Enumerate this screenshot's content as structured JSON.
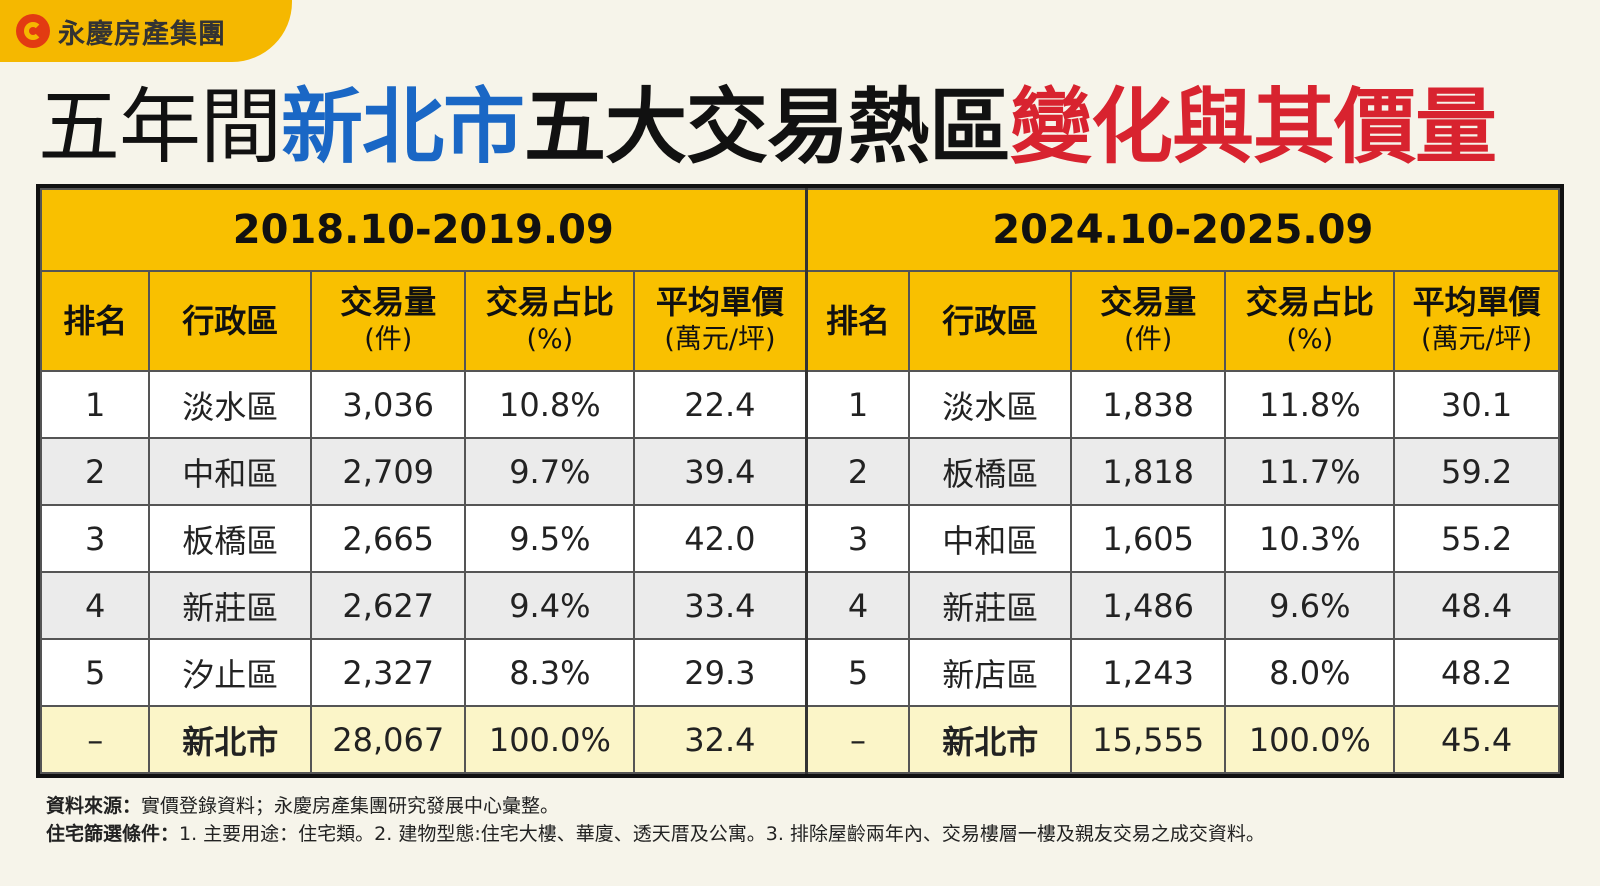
{
  "logo": {
    "text": "永慶房產集團"
  },
  "title": {
    "part1": "五年間",
    "part2": "新北市",
    "part3": "五大交易熱區",
    "part4": "變化與其價量"
  },
  "periods": [
    "2018.10-2019.09",
    "2024.10-2025.09"
  ],
  "columns": [
    {
      "label": "排名",
      "unit": ""
    },
    {
      "label": "行政區",
      "unit": ""
    },
    {
      "label": "交易量",
      "unit": "(件)"
    },
    {
      "label": "交易占比",
      "unit": "(%)"
    },
    {
      "label": "平均單價",
      "unit": "(萬元/坪)"
    }
  ],
  "rows": [
    {
      "left": [
        "1",
        "淡水區",
        "3,036",
        "10.8%",
        "22.4"
      ],
      "right": [
        "1",
        "淡水區",
        "1,838",
        "11.8%",
        "30.1"
      ]
    },
    {
      "left": [
        "2",
        "中和區",
        "2,709",
        "9.7%",
        "39.4"
      ],
      "right": [
        "2",
        "板橋區",
        "1,818",
        "11.7%",
        "59.2"
      ]
    },
    {
      "left": [
        "3",
        "板橋區",
        "2,665",
        "9.5%",
        "42.0"
      ],
      "right": [
        "3",
        "中和區",
        "1,605",
        "10.3%",
        "55.2"
      ]
    },
    {
      "left": [
        "4",
        "新莊區",
        "2,627",
        "9.4%",
        "33.4"
      ],
      "right": [
        "4",
        "新莊區",
        "1,486",
        "9.6%",
        "48.4"
      ]
    },
    {
      "left": [
        "5",
        "汐止區",
        "2,327",
        "8.3%",
        "29.3"
      ],
      "right": [
        "5",
        "新店區",
        "1,243",
        "8.0%",
        "48.2"
      ]
    }
  ],
  "total": {
    "left": [
      "–",
      "新北市",
      "28,067",
      "100.0%",
      "32.4"
    ],
    "right": [
      "–",
      "新北市",
      "15,555",
      "100.0%",
      "45.4"
    ]
  },
  "notes": {
    "source_label": "資料來源：",
    "source_text": "實價登錄資料；永慶房產集團研究發展中心彙整。",
    "criteria_label": "住宅篩選條件：",
    "criteria_text": "1. 主要用途：住宅類。2. 建物型態:住宅大樓、華廈、透天厝及公寓。3. 排除屋齡兩年內、交易樓層一樓及親友交易之成交資料。"
  },
  "colors": {
    "accent_yellow": "#f9c000",
    "title_blue": "#1a67c5",
    "title_red": "#d8232f",
    "total_row_bg": "#fbf5c8"
  }
}
